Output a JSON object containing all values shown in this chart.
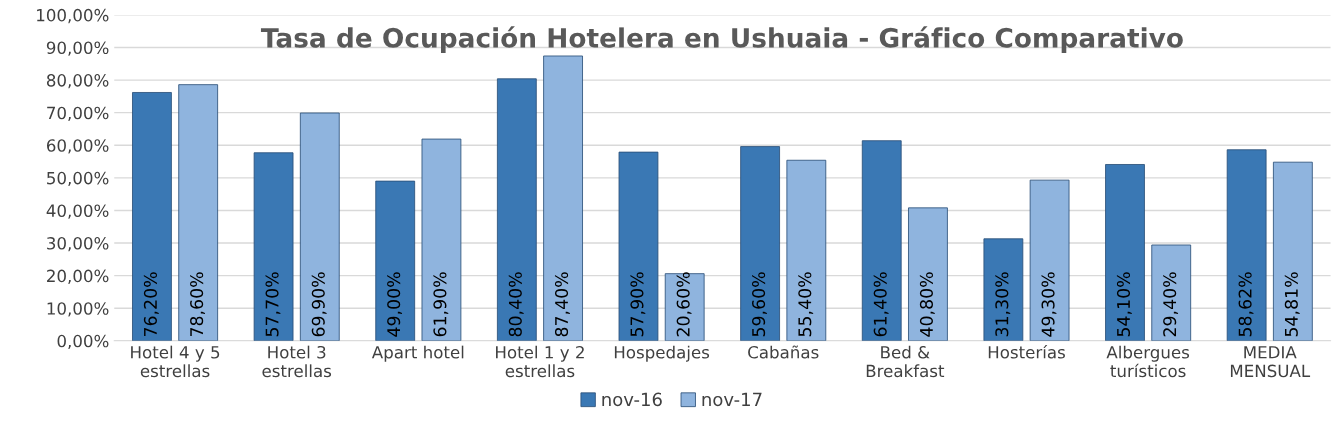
{
  "chart_data": {
    "type": "bar",
    "title": "Tasa de Ocupación Hotelera en Ushuaia - Gráfico Comparativo",
    "categories": [
      "Hotel 4 y 5\nestrellas",
      "Hotel 3\nestrellas",
      "Apart hotel",
      "Hotel 1 y 2\nestrellas",
      "Hospedajes",
      "Cabañas",
      "Bed &\nBreakfast",
      "Hosterías",
      "Albergues\nturísticos",
      "MEDIA\nMENSUAL"
    ],
    "series": [
      {
        "name": "nov-16",
        "color": "#3a78b4",
        "values": [
          76.2,
          57.7,
          49.0,
          80.4,
          57.9,
          59.6,
          61.4,
          31.3,
          54.1,
          58.62
        ],
        "value_labels": [
          "76,20%",
          "57,70%",
          "49,00%",
          "80,40%",
          "57,90%",
          "59,60%",
          "61,40%",
          "31,30%",
          "54,10%",
          "58,62%"
        ]
      },
      {
        "name": "nov-17",
        "color": "#8fb4de",
        "values": [
          78.6,
          69.9,
          61.9,
          87.4,
          20.6,
          55.4,
          40.8,
          49.3,
          29.4,
          54.81
        ],
        "value_labels": [
          "78,60%",
          "69,90%",
          "61,90%",
          "87,40%",
          "20,60%",
          "55,40%",
          "40,80%",
          "49,30%",
          "29,40%",
          "54,81%"
        ]
      }
    ],
    "ylim": [
      0,
      100
    ],
    "yticks": [
      {
        "value": 0,
        "label": "0,00%"
      },
      {
        "value": 10,
        "label": "10,00%"
      },
      {
        "value": 20,
        "label": "20,00%"
      },
      {
        "value": 30,
        "label": "30,00%"
      },
      {
        "value": 40,
        "label": "40,00%"
      },
      {
        "value": 50,
        "label": "50,00%"
      },
      {
        "value": 60,
        "label": "60,00%"
      },
      {
        "value": 70,
        "label": "70,00%"
      },
      {
        "value": 80,
        "label": "80,00%"
      },
      {
        "value": 90,
        "label": "90,00%"
      },
      {
        "value": 100,
        "label": "100,00%"
      }
    ],
    "grid": "y",
    "legend": "bottom"
  }
}
